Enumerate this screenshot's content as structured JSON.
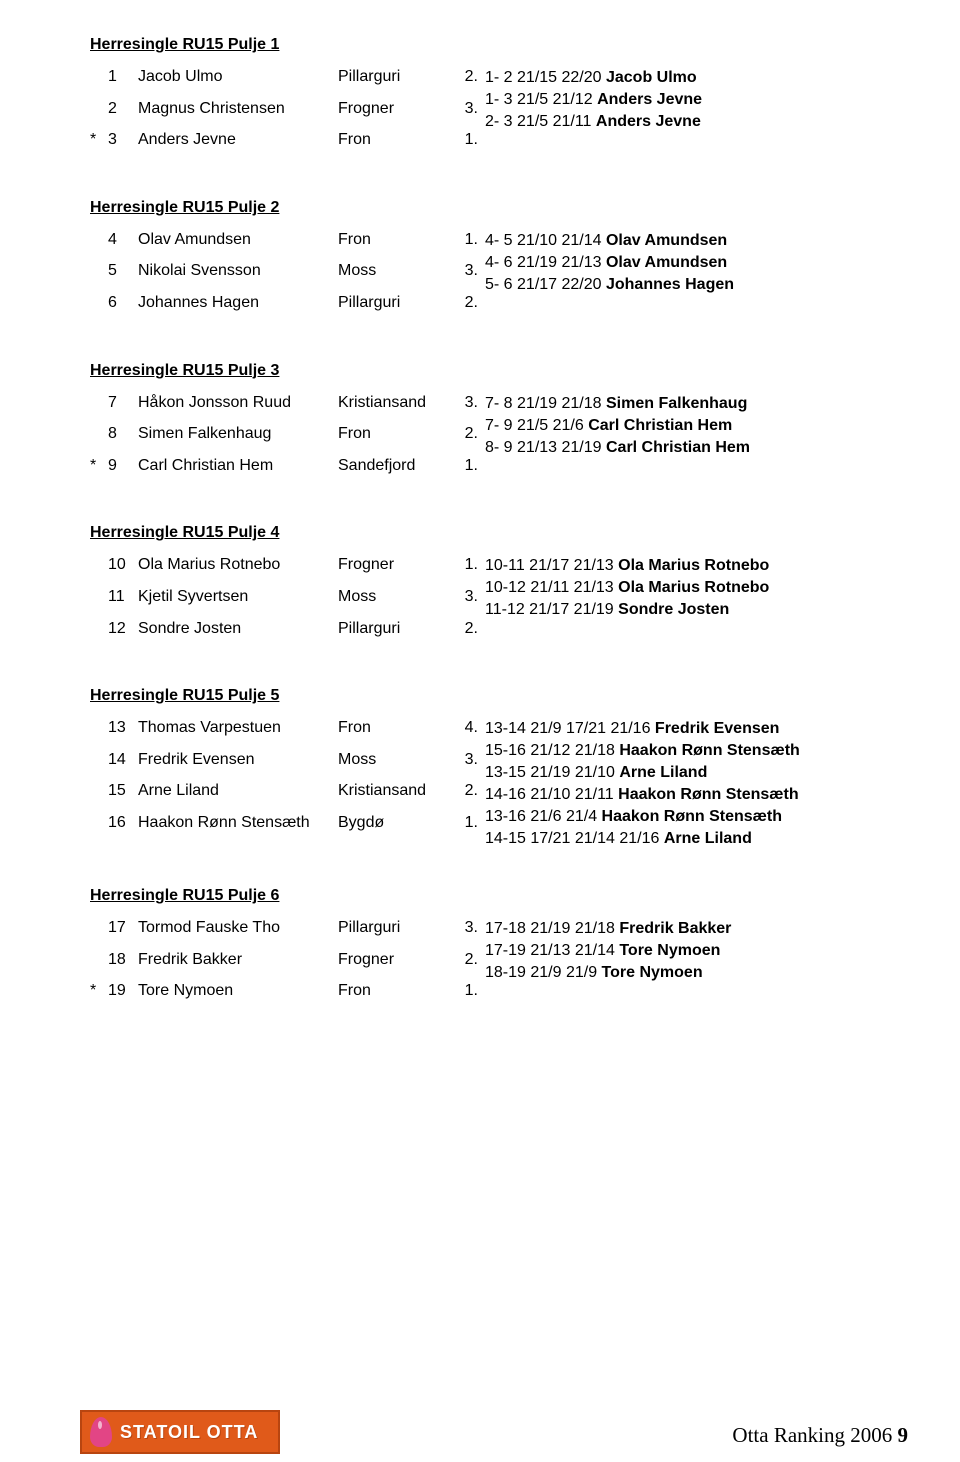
{
  "pools": [
    {
      "title": "Herresingle  RU15  Pulje  1",
      "players": [
        {
          "mark": "",
          "num": "1",
          "name": "Jacob Ulmo",
          "club": "Pillarguri",
          "rank": "2."
        },
        {
          "mark": "",
          "num": "2",
          "name": "Magnus Christensen",
          "club": "Frogner",
          "rank": "3."
        },
        {
          "mark": "*",
          "num": "3",
          "name": "Anders Jevne",
          "club": "Fron",
          "rank": "1."
        }
      ],
      "results": [
        {
          "pre": "1- 2 21/15 22/20 ",
          "bold": "Jacob  Ulmo"
        },
        {
          "pre": "1- 3 21/5 21/12 ",
          "bold": "Anders  Jevne"
        },
        {
          "pre": "2- 3 21/5 21/11 ",
          "bold": "Anders  Jevne"
        }
      ]
    },
    {
      "title": "Herresingle  RU15  Pulje  2",
      "players": [
        {
          "mark": "",
          "num": "4",
          "name": "Olav Amundsen",
          "club": "Fron",
          "rank": "1."
        },
        {
          "mark": "",
          "num": "5",
          "name": "Nikolai Svensson",
          "club": "Moss",
          "rank": "3."
        },
        {
          "mark": "",
          "num": "6",
          "name": "Johannes Hagen",
          "club": "Pillarguri",
          "rank": "2."
        }
      ],
      "results": [
        {
          "pre": "4- 5 21/10 21/14 ",
          "bold": "Olav  Amundsen"
        },
        {
          "pre": "4- 6 21/19 21/13 ",
          "bold": "Olav  Amundsen"
        },
        {
          "pre": "5- 6 21/17 22/20 ",
          "bold": "Johannes  Hagen"
        }
      ]
    },
    {
      "title": "Herresingle  RU15  Pulje  3",
      "players": [
        {
          "mark": "",
          "num": "7",
          "name": "Håkon Jonsson Ruud",
          "club": "Kristiansand",
          "rank": "3."
        },
        {
          "mark": "",
          "num": "8",
          "name": "Simen Falkenhaug",
          "club": "Fron",
          "rank": "2."
        },
        {
          "mark": "*",
          "num": "9",
          "name": "Carl Christian Hem",
          "club": "Sandefjord",
          "rank": "1."
        }
      ],
      "results": [
        {
          "pre": "7- 8 21/19 21/18 ",
          "bold": "Simen  Falkenhaug"
        },
        {
          "pre": "7- 9 21/5 21/6 ",
          "bold": "Carl  Christian  Hem"
        },
        {
          "pre": "8- 9 21/13 21/19 ",
          "bold": "Carl  Christian  Hem"
        }
      ]
    },
    {
      "title": "Herresingle  RU15  Pulje  4",
      "players": [
        {
          "mark": "",
          "num": "10",
          "name": "Ola Marius Rotnebo",
          "club": "Frogner",
          "rank": "1."
        },
        {
          "mark": "",
          "num": "11",
          "name": "Kjetil Syvertsen",
          "club": "Moss",
          "rank": "3."
        },
        {
          "mark": "",
          "num": "12",
          "name": "Sondre Josten",
          "club": "Pillarguri",
          "rank": "2."
        }
      ],
      "results": [
        {
          "pre": "10-11 21/17 21/13 ",
          "bold": "Ola  Marius  Rotnebo"
        },
        {
          "pre": "10-12 21/11 21/13 ",
          "bold": "Ola  Marius  Rotnebo"
        },
        {
          "pre": "11-12 21/17 21/19 ",
          "bold": "Sondre  Josten"
        }
      ]
    },
    {
      "title": "Herresingle  RU15  Pulje  5",
      "players": [
        {
          "mark": "",
          "num": "13",
          "name": "Thomas Varpestuen",
          "club": "Fron",
          "rank": "4."
        },
        {
          "mark": "",
          "num": "14",
          "name": "Fredrik Evensen",
          "club": "Moss",
          "rank": "3."
        },
        {
          "mark": "",
          "num": "15",
          "name": "Arne Liland",
          "club": "Kristiansand",
          "rank": "2."
        },
        {
          "mark": "",
          "num": "16",
          "name": "Haakon Rønn Stensæth",
          "club": "Bygdø",
          "rank": "1."
        }
      ],
      "results": [
        {
          "pre": "13-14 21/9 17/21 21/16 ",
          "bold": "Fredrik  Evensen"
        },
        {
          "pre": "15-16 21/12 21/18 ",
          "bold": "Haakon  Rønn  Stensæth"
        },
        {
          "pre": "13-15 21/19 21/10 ",
          "bold": "Arne  Liland"
        },
        {
          "pre": "14-16 21/10 21/11 ",
          "bold": "Haakon  Rønn  Stensæth"
        },
        {
          "pre": "13-16 21/6 21/4 ",
          "bold": "Haakon  Rønn  Stensæth"
        },
        {
          "pre": "14-15 17/21 21/14 21/16 ",
          "bold": "Arne  Liland"
        }
      ]
    },
    {
      "title": "Herresingle  RU15  Pulje  6",
      "players": [
        {
          "mark": "",
          "num": "17",
          "name": "Tormod Fauske Tho",
          "club": "Pillarguri",
          "rank": "3."
        },
        {
          "mark": "",
          "num": "18",
          "name": "Fredrik Bakker",
          "club": "Frogner",
          "rank": "2."
        },
        {
          "mark": "*",
          "num": "19",
          "name": "Tore Nymoen",
          "club": "Fron",
          "rank": "1."
        }
      ],
      "results": [
        {
          "pre": "17-18 21/19 21/18 ",
          "bold": "Fredrik  Bakker"
        },
        {
          "pre": "17-19 21/13 21/14 ",
          "bold": "Tore  Nymoen"
        },
        {
          "pre": "18-19 21/9 21/9 ",
          "bold": "Tore  Nymoen"
        }
      ]
    }
  ],
  "footer": {
    "logo_text": "STATOIL OTTA",
    "page_title_pre": "Otta Ranking 2006 ",
    "page_num": "9"
  }
}
